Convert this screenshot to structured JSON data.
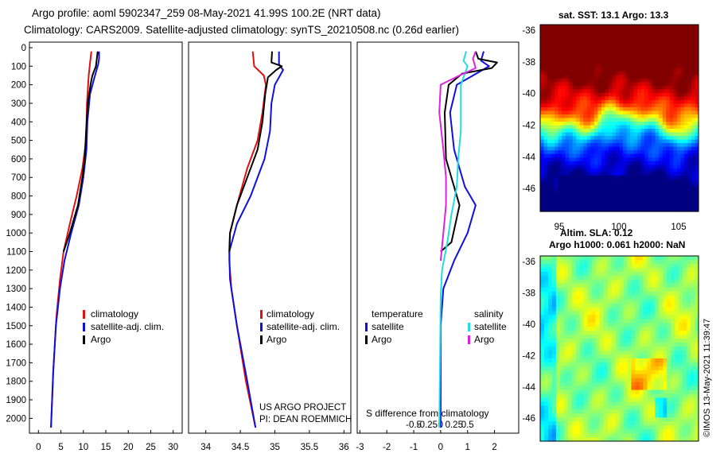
{
  "header": {
    "line1": "Argo profile: aoml 5902347_259 08-May-2021 41.99S 100.2E (NRT data)",
    "line2": "Climatology: CARS2009. Satellite-adjusted climatology: synTS_20210508.nc (0.26d earlier)"
  },
  "colors": {
    "climatology": "#e01010",
    "satellite": "#1010dd",
    "argo": "#000000",
    "sat_salinity": "#22dddd",
    "argo_salinity": "#dd22dd"
  },
  "chart_data": [
    {
      "type": "line",
      "id": "temperature",
      "xlim": [
        -2,
        32
      ],
      "ylim": [
        2080,
        -30
      ],
      "yticks": [
        "0",
        "100",
        "200",
        "300",
        "400",
        "500",
        "600",
        "700",
        "800",
        "900",
        "1000",
        "1100",
        "1200",
        "1300",
        "1400",
        "1500",
        "1600",
        "1700",
        "1800",
        "1900",
        "2000"
      ],
      "xticks": [
        "0",
        "5",
        "10",
        "15",
        "20",
        "25",
        "30"
      ],
      "legend": [
        "climatology",
        "satellite-adj. clim.",
        "Argo"
      ],
      "series": [
        {
          "name": "climatology",
          "color_key": "climatology",
          "points": [
            [
              11.8,
              20
            ],
            [
              11.5,
              80
            ],
            [
              11.2,
              150
            ],
            [
              10.8,
              300
            ],
            [
              10.6,
              500
            ],
            [
              9.8,
              650
            ],
            [
              8.5,
              800
            ],
            [
              7.0,
              950
            ],
            [
              5.6,
              1100
            ],
            [
              4.8,
              1250
            ],
            [
              4.0,
              1450
            ],
            [
              3.3,
              1750
            ],
            [
              2.8,
              2050
            ]
          ]
        },
        {
          "name": "satellite-adj. clim.",
          "color_key": "satellite",
          "points": [
            [
              13.5,
              20
            ],
            [
              13.5,
              60
            ],
            [
              13.3,
              90
            ],
            [
              12.6,
              150
            ],
            [
              11.5,
              250
            ],
            [
              10.9,
              400
            ],
            [
              10.7,
              550
            ],
            [
              10.0,
              700
            ],
            [
              9.0,
              850
            ],
            [
              7.3,
              1000
            ],
            [
              5.8,
              1150
            ],
            [
              4.8,
              1300
            ],
            [
              3.9,
              1500
            ],
            [
              3.3,
              1750
            ],
            [
              2.8,
              2050
            ]
          ]
        },
        {
          "name": "Argo",
          "color_key": "argo",
          "points": [
            [
              13.2,
              20
            ],
            [
              13.0,
              60
            ],
            [
              12.8,
              100
            ],
            [
              12.0,
              150
            ],
            [
              11.6,
              200
            ],
            [
              11.0,
              300
            ],
            [
              10.6,
              450
            ],
            [
              10.3,
              600
            ],
            [
              9.8,
              700
            ],
            [
              8.8,
              850
            ],
            [
              7.0,
              1000
            ],
            [
              5.6,
              1100
            ]
          ]
        }
      ]
    },
    {
      "type": "line",
      "id": "salinity",
      "xlim": [
        33.75,
        36.1
      ],
      "ylim": [
        2080,
        -30
      ],
      "xticks": [
        "34",
        "34.5",
        "35",
        "35.5",
        "36"
      ],
      "legend": [
        "climatology",
        "satellite-adj. clim.",
        "Argo"
      ],
      "annotation": [
        "US ARGO PROJECT",
        "PI: DEAN ROEMMICH"
      ],
      "series": [
        {
          "name": "climatology",
          "color_key": "climatology",
          "points": [
            [
              34.68,
              20
            ],
            [
              34.7,
              100
            ],
            [
              34.84,
              150
            ],
            [
              34.87,
              200
            ],
            [
              34.82,
              350
            ],
            [
              34.75,
              500
            ],
            [
              34.6,
              650
            ],
            [
              34.45,
              850
            ],
            [
              34.35,
              1000
            ],
            [
              34.34,
              1150
            ],
            [
              34.37,
              1300
            ],
            [
              34.45,
              1500
            ],
            [
              34.58,
              1800
            ],
            [
              34.72,
              2050
            ]
          ]
        },
        {
          "name": "satellite-adj. clim.",
          "color_key": "satellite",
          "points": [
            [
              35.06,
              20
            ],
            [
              35.06,
              60
            ],
            [
              35.06,
              90
            ],
            [
              35.12,
              120
            ],
            [
              35.0,
              200
            ],
            [
              34.95,
              300
            ],
            [
              34.93,
              450
            ],
            [
              34.85,
              600
            ],
            [
              34.65,
              800
            ],
            [
              34.45,
              950
            ],
            [
              34.34,
              1100
            ],
            [
              34.35,
              1250
            ],
            [
              34.45,
              1500
            ],
            [
              34.6,
              1800
            ],
            [
              34.72,
              2050
            ]
          ]
        },
        {
          "name": "Argo",
          "color_key": "argo",
          "points": [
            [
              34.96,
              20
            ],
            [
              34.95,
              80
            ],
            [
              35.1,
              100
            ],
            [
              35.02,
              120
            ],
            [
              34.9,
              160
            ],
            [
              34.86,
              250
            ],
            [
              34.82,
              400
            ],
            [
              34.75,
              550
            ],
            [
              34.6,
              700
            ],
            [
              34.45,
              850
            ],
            [
              34.35,
              1000
            ],
            [
              34.34,
              1100
            ]
          ]
        }
      ]
    },
    {
      "type": "line",
      "id": "difference",
      "xlim": [
        -3.1,
        2.9
      ],
      "ylim": [
        2080,
        -30
      ],
      "xticks": [
        "-3",
        "-2",
        "-1",
        "0",
        "1",
        "2"
      ],
      "s_ticks": [
        "-0.5",
        "-0.25",
        "0",
        "0.25",
        "0.5"
      ],
      "xlabel": "S difference from climatology",
      "legend_titles": [
        "temperature",
        "salinity"
      ],
      "legend": [
        "satellite",
        "Argo",
        "satellite",
        "Argo"
      ],
      "series": [
        {
          "name": "temperature satellite",
          "color_key": "satellite",
          "points": [
            [
              1.6,
              20
            ],
            [
              1.5,
              70
            ],
            [
              1.8,
              100
            ],
            [
              1.2,
              150
            ],
            [
              0.6,
              200
            ],
            [
              0.35,
              350
            ],
            [
              0.5,
              550
            ],
            [
              0.9,
              750
            ],
            [
              1.3,
              850
            ],
            [
              1.0,
              1000
            ],
            [
              0.5,
              1150
            ],
            [
              0.1,
              1300
            ],
            [
              0.0,
              1500
            ],
            [
              0.0,
              2050
            ]
          ]
        },
        {
          "name": "temperature Argo",
          "color_key": "argo",
          "points": [
            [
              1.3,
              20
            ],
            [
              1.4,
              60
            ],
            [
              2.1,
              80
            ],
            [
              1.9,
              110
            ],
            [
              0.8,
              140
            ],
            [
              0.3,
              200
            ],
            [
              0.15,
              350
            ],
            [
              0.2,
              600
            ],
            [
              0.5,
              750
            ],
            [
              0.7,
              850
            ],
            [
              0.55,
              950
            ],
            [
              0.4,
              1050
            ],
            [
              0.0,
              1100
            ]
          ]
        },
        {
          "name": "salinity satellite",
          "color_key": "sat_salinity",
          "points": [
            [
              0.95,
              20
            ],
            [
              0.85,
              70
            ],
            [
              1.0,
              100
            ],
            [
              0.75,
              200
            ],
            [
              0.75,
              450
            ],
            [
              0.65,
              600
            ],
            [
              0.6,
              750
            ],
            [
              0.4,
              900
            ],
            [
              0.25,
              1050
            ],
            [
              0.05,
              1200
            ],
            [
              0.0,
              1350
            ],
            [
              -0.05,
              2050
            ]
          ]
        },
        {
          "name": "salinity Argo",
          "color_key": "argo_salinity",
          "points": [
            [
              1.3,
              20
            ],
            [
              1.2,
              60
            ],
            [
              1.3,
              110
            ],
            [
              0.7,
              150
            ],
            [
              0.0,
              200
            ],
            [
              -0.05,
              350
            ],
            [
              0.1,
              550
            ],
            [
              0.2,
              700
            ],
            [
              0.2,
              850
            ],
            [
              0.1,
              1000
            ],
            [
              0.0,
              1150
            ]
          ]
        }
      ]
    }
  ],
  "sst_map": {
    "title": "sat. SST: 13.1  Argo: 13.3",
    "lat_labels": [
      "-36",
      "-38",
      "-40",
      "-42",
      "-44",
      "-46"
    ],
    "lon_labels": [
      "95",
      "100",
      "105"
    ]
  },
  "sla_map": {
    "title1": "Altim. SLA: 0.12",
    "title2": "Argo h1000: 0.061 h2000: NaN",
    "lat_labels": [
      "-36",
      "-38",
      "-40",
      "-42",
      "-44",
      "-46"
    ],
    "credit": "©IMOS 13-May-2021 11:39:47"
  }
}
